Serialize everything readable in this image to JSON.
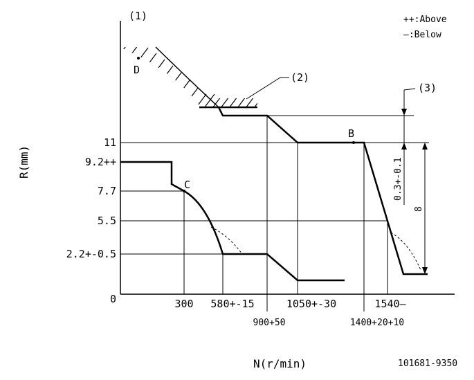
{
  "annotations": {
    "callout_1": "(1)",
    "callout_2": "(2)",
    "callout_3": "(3)",
    "legend_above": "++:Above",
    "legend_below": "—:Below",
    "point_d": "D",
    "point_c": "C",
    "point_b": "B",
    "dim_vertical": "0.3+-0.1",
    "dim_8": "8",
    "drawing_number": "101681-9350"
  },
  "axes": {
    "y_title": "R(mm)",
    "x_title": "N(r/min)",
    "y_ticks": [
      "11",
      "9.2++",
      "7.7",
      "5.5",
      "2.2+-0.5",
      "0"
    ],
    "x_ticks_upper": [
      "300",
      "580+-15",
      "1050+-30",
      "1540—"
    ],
    "x_ticks_lower": [
      "900+50",
      "1400+20+10"
    ]
  },
  "colors": {
    "ink": "#000000",
    "background": "#ffffff"
  }
}
